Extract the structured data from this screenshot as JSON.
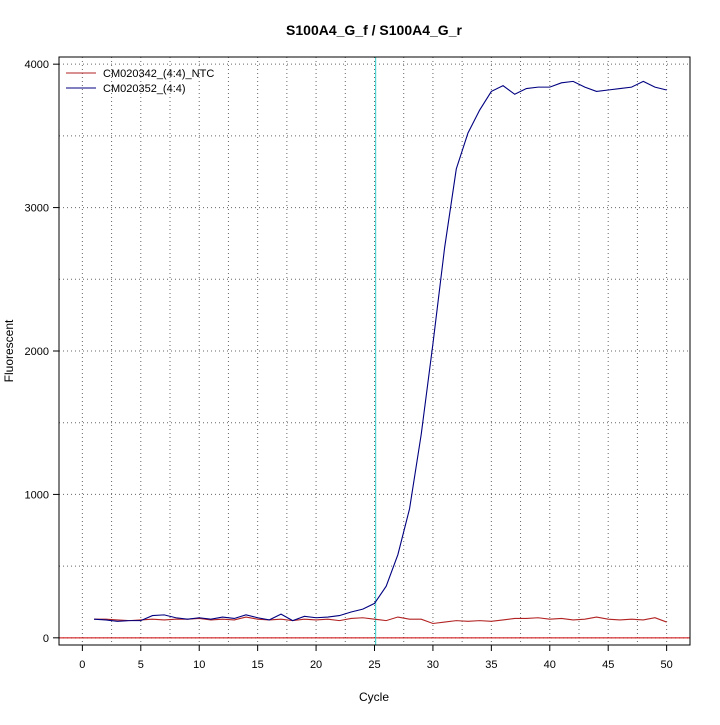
{
  "chart_data": {
    "type": "line",
    "title": "S100A4_G_f / S100A4_G_r",
    "xlabel": "Cycle",
    "ylabel": "Fluorescent",
    "xlim": [
      -2,
      52
    ],
    "ylim": [
      -50,
      4050
    ],
    "x_ticks": [
      0,
      5,
      10,
      15,
      20,
      25,
      30,
      35,
      40,
      45,
      50
    ],
    "y_ticks": [
      0,
      1000,
      2000,
      3000,
      4000
    ],
    "grid": true,
    "grid_minor_y": [
      500,
      1500,
      2500,
      3500
    ],
    "grid_minor_x": [
      2.5,
      7.5,
      12.5,
      17.5,
      22.5,
      27.5,
      32.5,
      37.5,
      42.5,
      47.5
    ],
    "threshold_y": 0,
    "threshold_color": "#cc0000",
    "cycle_marker_x": 25.1,
    "cycle_marker_color": "#33cccc",
    "legend_position": "top-left",
    "x": [
      1,
      2,
      3,
      4,
      5,
      6,
      7,
      8,
      9,
      10,
      11,
      12,
      13,
      14,
      15,
      16,
      17,
      18,
      19,
      20,
      21,
      22,
      23,
      24,
      25,
      26,
      27,
      28,
      29,
      30,
      31,
      32,
      33,
      34,
      35,
      36,
      37,
      38,
      39,
      40,
      41,
      42,
      43,
      44,
      45,
      46,
      47,
      48,
      49,
      50
    ],
    "series": [
      {
        "name": "CM020342_(4:4)_NTC",
        "color": "#b22222",
        "values": [
          130,
          130,
          125,
          120,
          125,
          130,
          125,
          130,
          130,
          135,
          125,
          130,
          125,
          145,
          130,
          125,
          130,
          120,
          130,
          125,
          130,
          120,
          135,
          140,
          130,
          120,
          145,
          130,
          130,
          100,
          110,
          120,
          115,
          120,
          115,
          125,
          135,
          135,
          140,
          130,
          135,
          125,
          130,
          145,
          130,
          125,
          130,
          125,
          140,
          110
        ]
      },
      {
        "name": "CM020352_(4:4)",
        "color": "#000080",
        "values": [
          130,
          125,
          115,
          120,
          120,
          155,
          160,
          140,
          130,
          140,
          130,
          145,
          135,
          160,
          140,
          125,
          165,
          120,
          150,
          140,
          145,
          155,
          180,
          200,
          240,
          360,
          580,
          900,
          1420,
          2050,
          2720,
          3270,
          3520,
          3680,
          3810,
          3850,
          3790,
          3830,
          3840,
          3840,
          3870,
          3880,
          3840,
          3810,
          3820,
          3830,
          3840,
          3880,
          3840,
          3820
        ]
      }
    ]
  }
}
